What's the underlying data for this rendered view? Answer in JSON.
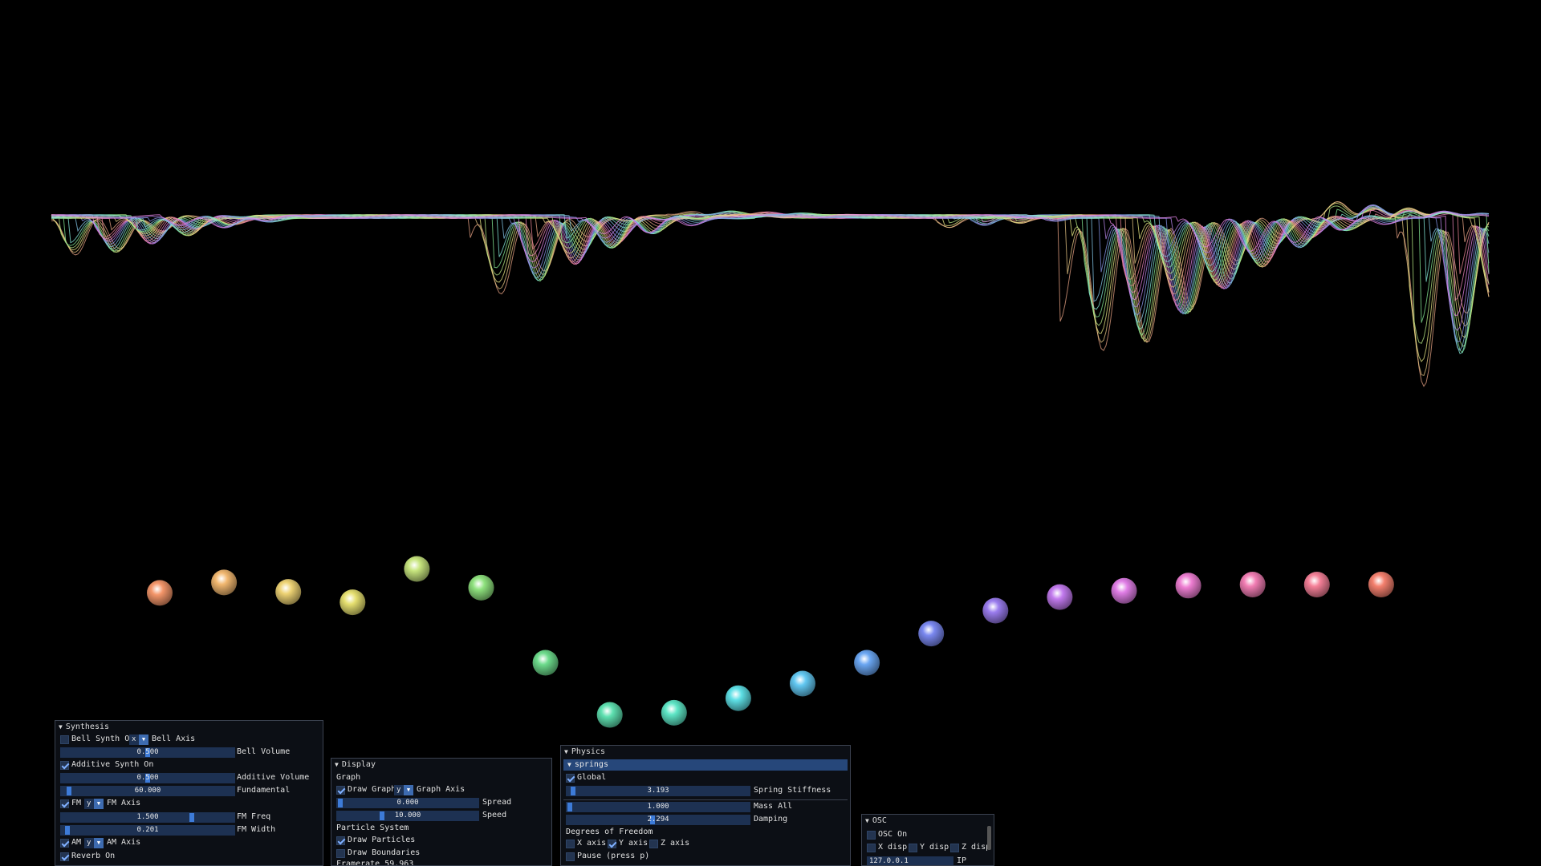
{
  "colors": {
    "background": "#000000",
    "panel": "#0c1016",
    "frame": "#1d3152",
    "accent": "#3d7bd8"
  },
  "synthesis": {
    "title": "Synthesis",
    "bell_synth_label": "Bell Synth On",
    "bell_axis_value": "x",
    "bell_axis_label": "Bell Axis",
    "bell_volume_value": "0.500",
    "bell_volume_label": "Bell Volume",
    "additive_synth_label": "Additive Synth On",
    "additive_volume_value": "0.500",
    "additive_volume_label": "Additive Volume",
    "fundamental_value": "60.000",
    "fundamental_label": "Fundamental",
    "fm_label": "FM",
    "fm_axis_value": "y",
    "fm_axis_label": "FM Axis",
    "fm_freq_value": "1.500",
    "fm_freq_label": "FM Freq",
    "fm_width_value": "0.201",
    "fm_width_label": "FM Width",
    "am_label": "AM",
    "am_axis_value": "y",
    "am_axis_label": "AM Axis",
    "reverb_label": "Reverb On"
  },
  "display": {
    "title": "Display",
    "graph_heading": "Graph",
    "draw_graph_label": "Draw Graph",
    "graph_axis_value": "y",
    "graph_axis_label": "Graph Axis",
    "spread_value": "0.000",
    "spread_label": "Spread",
    "speed_value": "10.000",
    "speed_label": "Speed",
    "particle_heading": "Particle System",
    "draw_particles_label": "Draw Particles",
    "draw_boundaries_label": "Draw Boundaries",
    "framerate_text": "Framerate 59.963"
  },
  "physics": {
    "title": "Physics",
    "springs_header": "springs",
    "global_label": "Global",
    "stiffness_value": "3.193",
    "stiffness_label": "Spring Stiffness",
    "mass_value": "1.000",
    "mass_label": "Mass All",
    "damping_value": "2.294",
    "damping_label": "Damping",
    "dof_heading": "Degrees of Freedom",
    "x_axis_label": "X axis",
    "y_axis_label": "Y axis",
    "z_axis_label": "Z axis",
    "pause_label": "Pause (press p)"
  },
  "osc": {
    "title": "OSC",
    "osc_on_label": "OSC On",
    "x_disp_label": "X disp",
    "y_disp_label": "Y disp",
    "z_disp_label": "Z disp",
    "ip_value": "127.0.0.1",
    "ip_label": "IP Addre"
  },
  "particles": [
    {
      "color": "#f4966a",
      "x": 0.0,
      "y": 0.62
    },
    {
      "color": "#f2b870",
      "x": 1.0,
      "y": 0.72
    },
    {
      "color": "#eed374",
      "x": 2.0,
      "y": 0.63
    },
    {
      "color": "#e6e070",
      "x": 3.0,
      "y": 0.53
    },
    {
      "color": "#c7e57e",
      "x": 4.0,
      "y": 0.85
    },
    {
      "color": "#8fe27e",
      "x": 5.0,
      "y": 0.67
    },
    {
      "color": "#6ddb8c",
      "x": 6.0,
      "y": -0.05
    },
    {
      "color": "#5ee0b0",
      "x": 7.0,
      "y": -0.55
    },
    {
      "color": "#5ee6c6",
      "x": 8.0,
      "y": -0.53
    },
    {
      "color": "#5ee0e6",
      "x": 9.0,
      "y": -0.39
    },
    {
      "color": "#62c8f2",
      "x": 10.0,
      "y": -0.25
    },
    {
      "color": "#6aa6f2",
      "x": 11.0,
      "y": -0.05
    },
    {
      "color": "#7a88f0",
      "x": 12.0,
      "y": 0.23
    },
    {
      "color": "#9a7cee",
      "x": 13.0,
      "y": 0.45
    },
    {
      "color": "#c27aee",
      "x": 14.0,
      "y": 0.58
    },
    {
      "color": "#e07ee6",
      "x": 15.0,
      "y": 0.64
    },
    {
      "color": "#ee7ed2",
      "x": 16.0,
      "y": 0.69
    },
    {
      "color": "#f27eb4",
      "x": 17.0,
      "y": 0.7
    },
    {
      "color": "#f58098",
      "x": 18.0,
      "y": 0.7
    },
    {
      "color": "#f4806e",
      "x": 19.0,
      "y": 0.7
    }
  ]
}
